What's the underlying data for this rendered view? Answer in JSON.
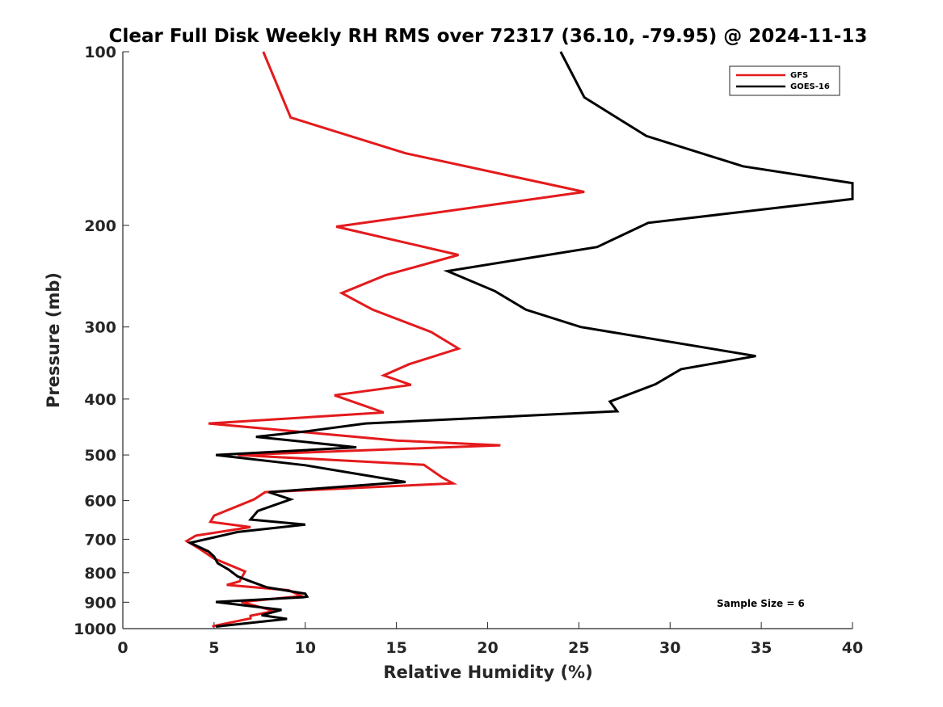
{
  "chart_data": {
    "type": "line",
    "title": "Clear Full Disk Weekly RH RMS over 72317 (36.10, -79.95) @ 2024-11-13",
    "xlabel": "Relative Humidity (%)",
    "ylabel": "Pressure (mb)",
    "xlim": [
      0,
      40
    ],
    "ylim": [
      100,
      1000
    ],
    "y_scale": "log",
    "y_reversed": true,
    "x_ticks": [
      0,
      5,
      10,
      15,
      20,
      25,
      30,
      35,
      40
    ],
    "y_ticks": [
      100,
      200,
      300,
      400,
      500,
      600,
      700,
      800,
      900,
      1000
    ],
    "grid": false,
    "legend_position": "top-right",
    "annotation": "Sample Size = 6",
    "series": [
      {
        "name": "GFS",
        "color": "#e41a1c",
        "points": [
          [
            7.7,
            100
          ],
          [
            9.2,
            130
          ],
          [
            15.5,
            150
          ],
          [
            25.3,
            175
          ],
          [
            11.7,
            201
          ],
          [
            18.4,
            225
          ],
          [
            14.4,
            244
          ],
          [
            12.0,
            262
          ],
          [
            13.7,
            280
          ],
          [
            16.9,
            306
          ],
          [
            18.4,
            327
          ],
          [
            15.7,
            348
          ],
          [
            14.3,
            364
          ],
          [
            15.8,
            378
          ],
          [
            11.6,
            394
          ],
          [
            14.3,
            422
          ],
          [
            4.7,
            441
          ],
          [
            15.0,
            472
          ],
          [
            20.7,
            481
          ],
          [
            6.3,
            500
          ],
          [
            16.5,
            520
          ],
          [
            17.5,
            547
          ],
          [
            18.1,
            560
          ],
          [
            7.8,
            580
          ],
          [
            7.2,
            597
          ],
          [
            5.0,
            637
          ],
          [
            4.8,
            653
          ],
          [
            7.0,
            667
          ],
          [
            4.0,
            690
          ],
          [
            3.5,
            705
          ],
          [
            4.2,
            727
          ],
          [
            5.0,
            756
          ],
          [
            6.7,
            796
          ],
          [
            6.4,
            828
          ],
          [
            5.7,
            840
          ],
          [
            9.1,
            858
          ],
          [
            9.8,
            878
          ],
          [
            6.5,
            899
          ],
          [
            8.3,
            932
          ],
          [
            7.0,
            950
          ],
          [
            7.0,
            960
          ],
          [
            4.9,
            991
          ]
        ]
      },
      {
        "name": "GOES-16",
        "color": "#000000",
        "points": [
          [
            24.0,
            100
          ],
          [
            25.3,
            120
          ],
          [
            28.7,
            140
          ],
          [
            34.0,
            158
          ],
          [
            40.0,
            169
          ],
          [
            40.0,
            180
          ],
          [
            28.8,
            198
          ],
          [
            26.0,
            218
          ],
          [
            17.8,
            240
          ],
          [
            20.4,
            260
          ],
          [
            22.1,
            280
          ],
          [
            25.1,
            300
          ],
          [
            34.7,
            337
          ],
          [
            30.6,
            355
          ],
          [
            29.2,
            377
          ],
          [
            26.7,
            404
          ],
          [
            27.1,
            420
          ],
          [
            13.3,
            441
          ],
          [
            10.1,
            455
          ],
          [
            7.3,
            465
          ],
          [
            12.8,
            485
          ],
          [
            5.1,
            500
          ],
          [
            10.0,
            521
          ],
          [
            15.5,
            557
          ],
          [
            8.0,
            580
          ],
          [
            9.2,
            597
          ],
          [
            7.4,
            625
          ],
          [
            7.0,
            647
          ],
          [
            10.0,
            660
          ],
          [
            6.3,
            680
          ],
          [
            3.7,
            710
          ],
          [
            4.7,
            735
          ],
          [
            5.0,
            750
          ],
          [
            5.2,
            770
          ],
          [
            5.8,
            790
          ],
          [
            6.3,
            812
          ],
          [
            6.9,
            826
          ],
          [
            7.9,
            848
          ],
          [
            10.0,
            870
          ],
          [
            10.1,
            880
          ],
          [
            9.9,
            882
          ],
          [
            5.1,
            899
          ],
          [
            8.7,
            928
          ],
          [
            7.6,
            948
          ],
          [
            9.0,
            962
          ],
          [
            5.1,
            992
          ]
        ]
      }
    ]
  }
}
